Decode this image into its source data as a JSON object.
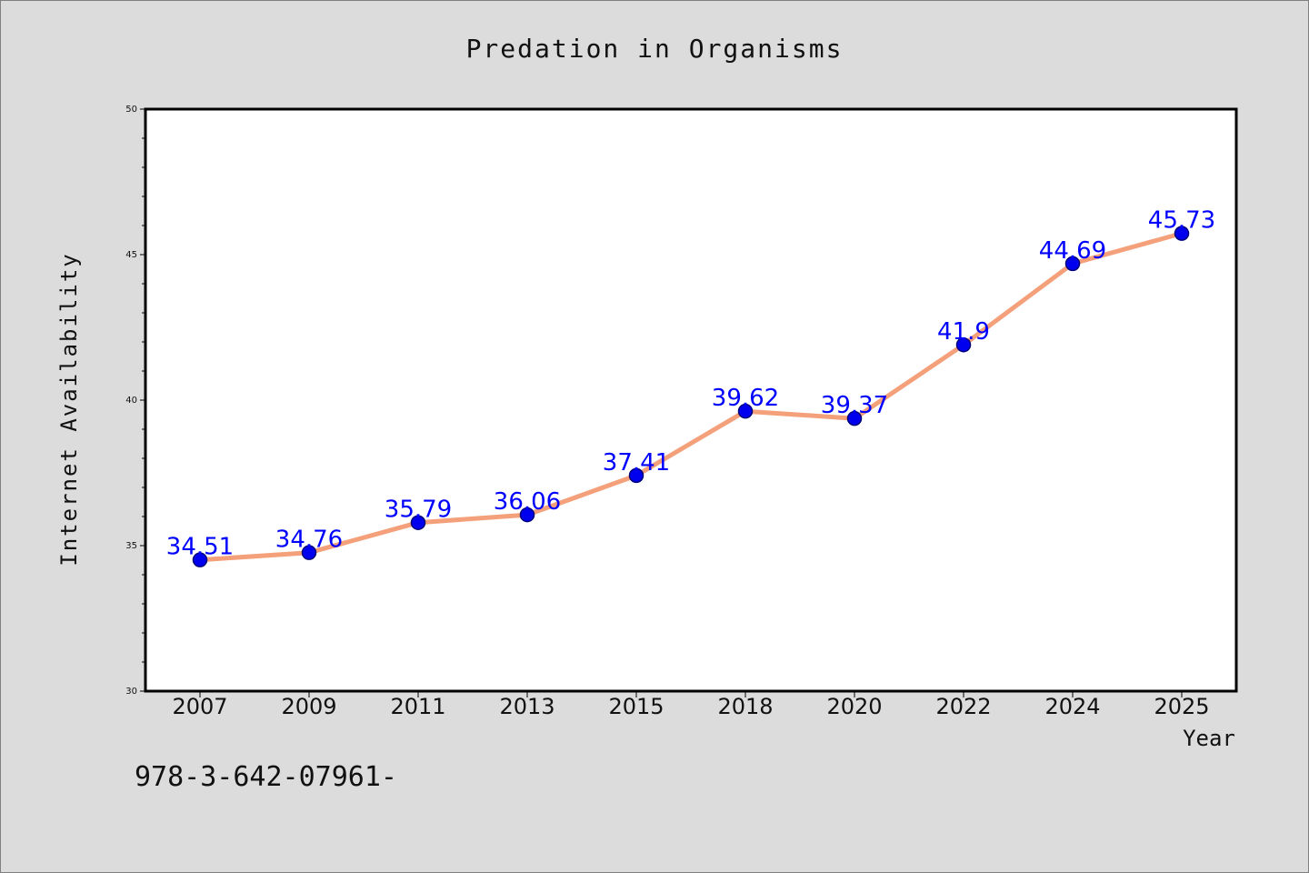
{
  "chart_data": {
    "type": "line",
    "title": "Predation in Organisms",
    "xlabel": "Year",
    "ylabel": "Internet Availability",
    "categories": [
      "2007",
      "2009",
      "2011",
      "2013",
      "2015",
      "2018",
      "2020",
      "2022",
      "2024",
      "2025"
    ],
    "series": [
      {
        "values": [
          34.51,
          34.76,
          35.79,
          36.06,
          37.41,
          39.62,
          39.37,
          41.9,
          44.69,
          45.73
        ],
        "data_labels": [
          "34.51",
          "34.76",
          "35.79",
          "36.06",
          "37.41",
          "39.62",
          "39.37",
          "41.9",
          "44.69",
          "45.73"
        ]
      }
    ],
    "ylim": [
      30,
      50
    ],
    "y_ticks": [
      "30",
      "35",
      "40",
      "45",
      "50"
    ],
    "grid": false,
    "legend": "none",
    "colors": {
      "line": "#f4a07a",
      "marker": "#0000ee",
      "data_label": "#0000ff",
      "background": "#dcdcdc",
      "plot_background": "#ffffff"
    }
  },
  "footer": {
    "code_text": "978-3-642-07961-"
  }
}
